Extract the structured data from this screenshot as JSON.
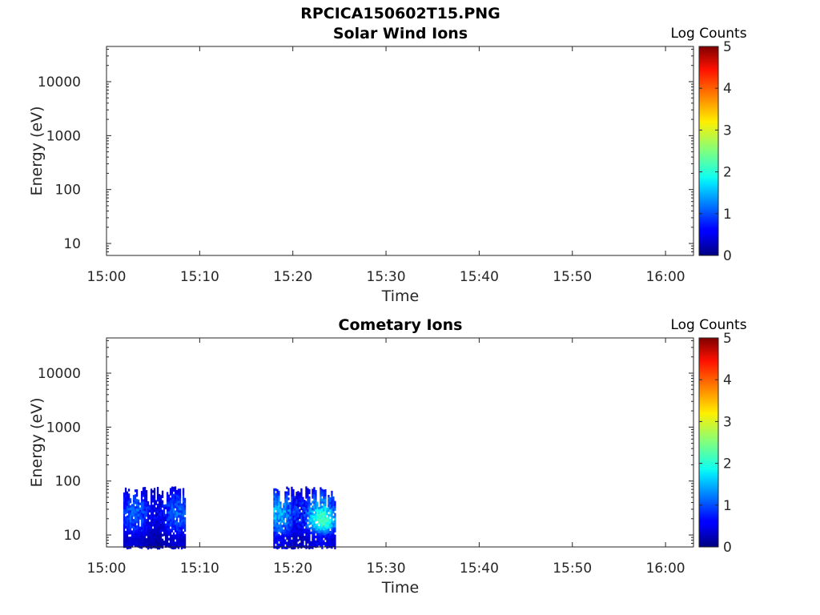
{
  "figure_title": "RPCICA150602T15.PNG",
  "chart_data": [
    {
      "type": "heatmap",
      "title": "Solar Wind Ions",
      "xlabel": "Time",
      "ylabel": "Energy (eV)",
      "x_ticks": [
        "15:00",
        "15:10",
        "15:20",
        "15:30",
        "15:40",
        "15:50",
        "16:00"
      ],
      "x_range_minutes": [
        0,
        63
      ],
      "y_scale": "log",
      "y_ticks": [
        10,
        100,
        1000,
        10000
      ],
      "y_range": [
        6,
        45000
      ],
      "colorbar": {
        "label": "Log Counts",
        "range": [
          0,
          5
        ],
        "ticks": [
          0,
          1,
          2,
          3,
          4,
          5
        ],
        "colormap": "jet"
      },
      "data_blocks": []
    },
    {
      "type": "heatmap",
      "title": "Cometary Ions",
      "xlabel": "Time",
      "ylabel": "Energy (eV)",
      "x_ticks": [
        "15:00",
        "15:10",
        "15:20",
        "15:30",
        "15:40",
        "15:50",
        "16:00"
      ],
      "x_range_minutes": [
        0,
        63
      ],
      "y_scale": "log",
      "y_ticks": [
        10,
        100,
        1000,
        10000
      ],
      "y_range": [
        6,
        45000
      ],
      "colorbar": {
        "label": "Log Counts",
        "range": [
          0,
          5
        ],
        "ticks": [
          0,
          1,
          2,
          3,
          4,
          5
        ],
        "colormap": "jet"
      },
      "data_blocks": [
        {
          "t_start_min": 1.8,
          "t_end_min": 8.5,
          "e_min_ev": 6,
          "e_max_ev": 80,
          "log_counts_range": [
            0,
            1.6
          ]
        },
        {
          "t_start_min": 17.9,
          "t_end_min": 24.5,
          "e_min_ev": 6,
          "e_max_ev": 80,
          "log_counts_range": [
            0,
            2.2
          ]
        }
      ]
    }
  ]
}
